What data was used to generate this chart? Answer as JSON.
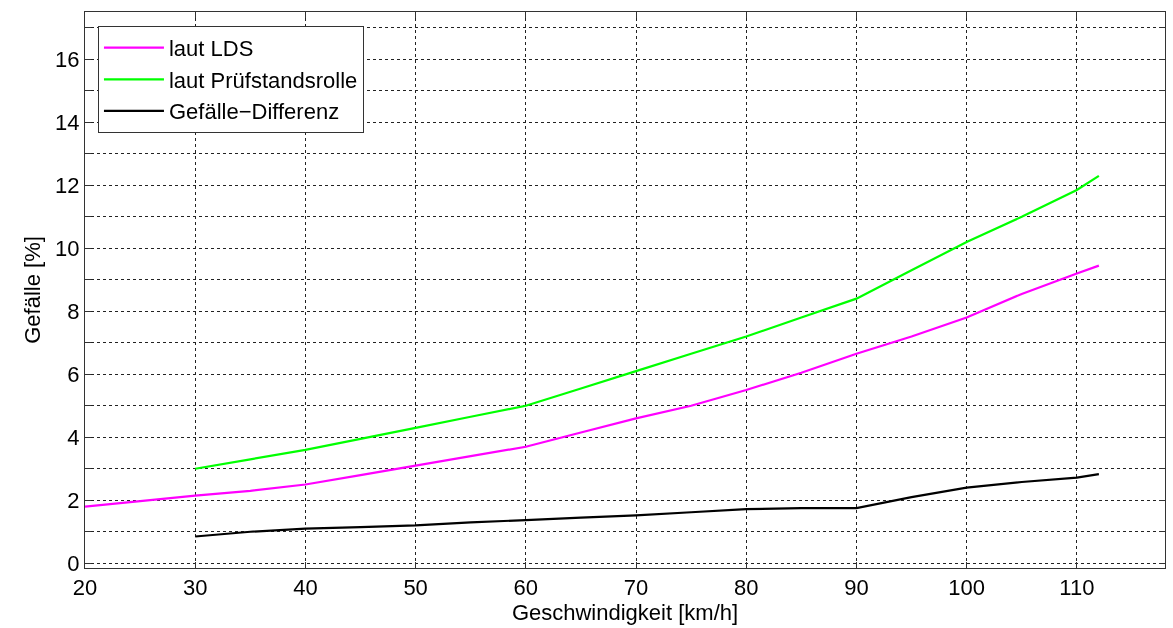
{
  "chart_data": {
    "type": "line",
    "xlabel": "Geschwindigkeit [km/h]",
    "ylabel": "Gefälle [%]",
    "xlim": [
      20,
      118
    ],
    "xticks": [
      20,
      30,
      40,
      50,
      60,
      70,
      80,
      90,
      100,
      110
    ],
    "ylim": [
      -0.15,
      17.5
    ],
    "yticks": [
      0,
      {
        "value": 1,
        "label": null
      },
      2,
      {
        "value": 3,
        "label": null
      },
      4,
      {
        "value": 5,
        "label": null
      },
      6,
      {
        "value": 7,
        "label": null
      },
      8,
      {
        "value": 9,
        "label": null
      },
      10,
      {
        "value": 11,
        "label": null
      },
      12,
      {
        "value": 13,
        "label": null
      },
      14,
      {
        "value": 15,
        "label": null
      },
      16,
      {
        "value": 17,
        "label": null
      }
    ],
    "grid": true,
    "legend": "top left",
    "marker": "none",
    "line_style": "solid",
    "series": [
      {
        "name": "laut LDS",
        "color": "#ff00ff",
        "x": [
          20,
          30,
          35,
          40,
          45,
          50,
          55,
          60,
          65,
          70,
          75,
          80,
          85,
          90,
          95,
          100,
          105,
          110,
          112
        ],
        "values": [
          1.8,
          2.15,
          2.3,
          2.5,
          2.8,
          3.1,
          3.4,
          3.7,
          4.15,
          4.6,
          5.0,
          5.5,
          6.05,
          6.65,
          7.2,
          7.8,
          8.55,
          9.2,
          9.45
        ]
      },
      {
        "name": "laut Prüfstandsrolle",
        "color": "#00ff00",
        "x": [
          30,
          35,
          40,
          45,
          50,
          55,
          60,
          65,
          70,
          75,
          80,
          85,
          90,
          95,
          100,
          105,
          110,
          112
        ],
        "values": [
          3.0,
          3.3,
          3.6,
          3.95,
          4.3,
          4.65,
          5.0,
          5.55,
          6.1,
          6.65,
          7.2,
          7.8,
          8.4,
          9.3,
          10.2,
          11.0,
          11.85,
          12.3
        ]
      },
      {
        "name": "Gefälle−Differenz",
        "color": "#000000",
        "x": [
          30,
          35,
          40,
          45,
          50,
          55,
          60,
          65,
          70,
          75,
          80,
          85,
          90,
          95,
          100,
          105,
          110,
          112
        ],
        "values": [
          0.85,
          1.0,
          1.1,
          1.15,
          1.2,
          1.3,
          1.37,
          1.45,
          1.52,
          1.62,
          1.72,
          1.75,
          1.75,
          2.1,
          2.4,
          2.58,
          2.72,
          2.83
        ]
      }
    ]
  }
}
